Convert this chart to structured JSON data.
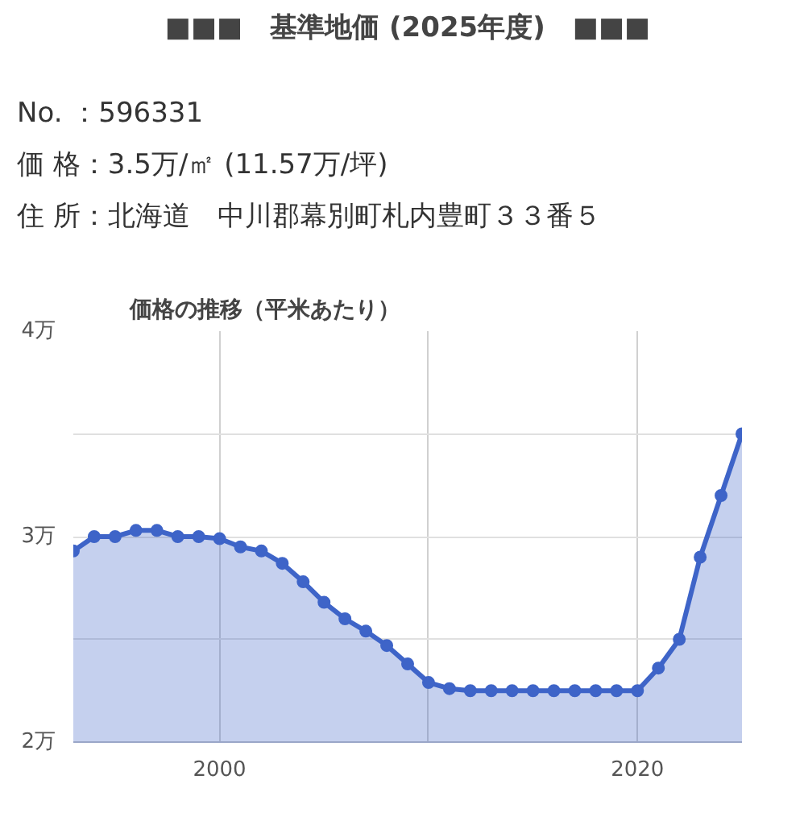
{
  "chart_data": {
    "type": "area",
    "title": "■■■　基準地価 (2025年度)　■■■",
    "subtitle": "価格の推移（平米あたり）",
    "annotations": [
      "No. ：596331",
      "価 格：3.5万/㎡ (11.57万/坪)",
      "住 所：北海道　中川郡幕別町札内豊町３３番５"
    ],
    "x": [
      1993,
      1994,
      1995,
      1996,
      1997,
      1998,
      1999,
      2000,
      2001,
      2002,
      2003,
      2004,
      2005,
      2006,
      2007,
      2008,
      2009,
      2010,
      2011,
      2012,
      2013,
      2014,
      2015,
      2016,
      2017,
      2018,
      2019,
      2020,
      2021,
      2022,
      2023,
      2024,
      2025
    ],
    "series": [
      {
        "color": "#3e64c8",
        "values": [
          2.93,
          3.0,
          3.0,
          3.03,
          3.03,
          3.0,
          3.0,
          2.99,
          2.95,
          2.93,
          2.87,
          2.78,
          2.68,
          2.6,
          2.54,
          2.47,
          2.38,
          2.29,
          2.26,
          2.25,
          2.25,
          2.25,
          2.25,
          2.25,
          2.25,
          2.25,
          2.25,
          2.25,
          2.36,
          2.5,
          2.9,
          3.2,
          3.5
        ]
      }
    ],
    "xlim": [
      1993,
      2025
    ],
    "ylim": [
      2,
      4
    ],
    "xticks": [
      2000,
      {
        "value": 2010,
        "label": null
      },
      2020
    ],
    "yticks": [
      {
        "value": 2,
        "label": "2万"
      },
      {
        "value": 2.5,
        "label": null
      },
      {
        "value": 3,
        "label": "3万"
      },
      {
        "value": 3.5,
        "label": null
      },
      {
        "value": 4,
        "label": "4万"
      }
    ],
    "grid": true,
    "marker": "circle",
    "line_style": "solid"
  }
}
